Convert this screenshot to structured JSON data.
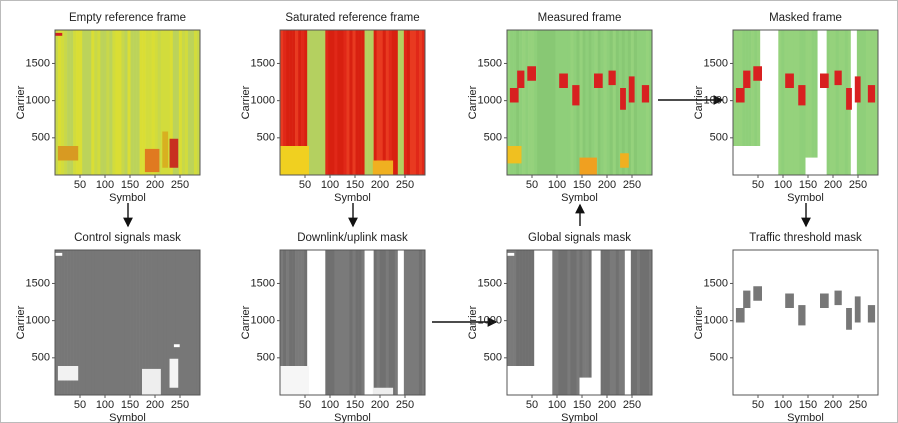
{
  "panels": [
    {
      "title": "Empty reference frame",
      "y_label": "Carrier",
      "x_label": "Symbol",
      "yticks": [
        500,
        1000,
        1500
      ],
      "xticks": [
        50,
        100,
        150,
        200,
        250
      ],
      "xlim": [
        0,
        290
      ],
      "ylim": [
        0,
        1950
      ]
    },
    {
      "title": "Saturated reference frame",
      "y_label": "Carrier",
      "x_label": "Symbol",
      "yticks": [
        500,
        1000,
        1500
      ],
      "xticks": [
        50,
        100,
        150,
        200,
        250
      ],
      "xlim": [
        0,
        290
      ],
      "ylim": [
        0,
        1950
      ]
    },
    {
      "title": "Measured frame",
      "y_label": "Carrier",
      "x_label": "Symbol",
      "yticks": [
        500,
        1000,
        1500
      ],
      "xticks": [
        50,
        100,
        150,
        200,
        250
      ],
      "xlim": [
        0,
        290
      ],
      "ylim": [
        0,
        1950
      ]
    },
    {
      "title": "Masked frame",
      "y_label": "Carrier",
      "x_label": "Symbol",
      "yticks": [
        500,
        1000,
        1500
      ],
      "xticks": [
        50,
        100,
        150,
        200,
        250
      ],
      "xlim": [
        0,
        290
      ],
      "ylim": [
        0,
        1950
      ]
    },
    {
      "title": "Control signals mask",
      "y_label": "Carrier",
      "x_label": "Symbol",
      "yticks": [
        500,
        1000,
        1500
      ],
      "xticks": [
        50,
        100,
        150,
        200,
        250
      ],
      "xlim": [
        0,
        290
      ],
      "ylim": [
        0,
        1950
      ]
    },
    {
      "title": "Downlink/uplink mask",
      "y_label": "Carrier",
      "x_label": "Symbol",
      "yticks": [
        500,
        1000,
        1500
      ],
      "xticks": [
        50,
        100,
        150,
        200,
        250
      ],
      "xlim": [
        0,
        290
      ],
      "ylim": [
        0,
        1950
      ]
    },
    {
      "title": "Global signals mask",
      "y_label": "Carrier",
      "x_label": "Symbol",
      "yticks": [
        500,
        1000,
        1500
      ],
      "xticks": [
        50,
        100,
        150,
        200,
        250
      ],
      "xlim": [
        0,
        290
      ],
      "ylim": [
        0,
        1950
      ]
    },
    {
      "title": "Traffic threshold mask",
      "y_label": "Carrier",
      "x_label": "Symbol",
      "yticks": [
        500,
        1000,
        1500
      ],
      "xticks": [
        50,
        100,
        150,
        200,
        250
      ],
      "xlim": [
        0,
        290
      ],
      "ylim": [
        0,
        1950
      ]
    }
  ]
}
